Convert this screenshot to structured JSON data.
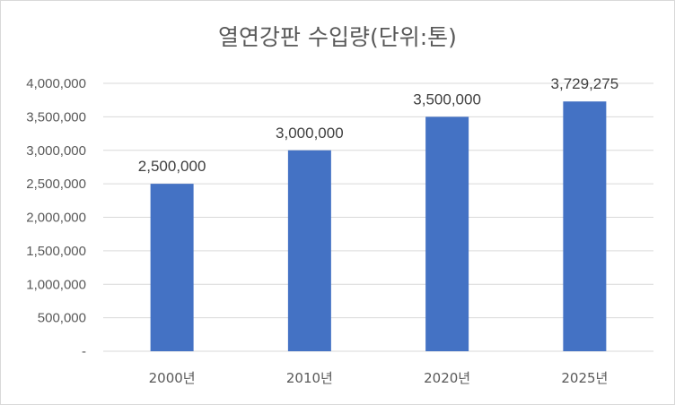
{
  "chart_data": {
    "type": "bar",
    "title": "열연강판 수입량(단위:톤)",
    "xlabel": "",
    "ylabel": "",
    "categories": [
      "2000년",
      "2010년",
      "2020년",
      "2025년"
    ],
    "values": [
      2500000,
      3000000,
      3500000,
      3729275
    ],
    "data_labels": [
      "2,500,000",
      "3,000,000",
      "3,500,000",
      "3,729,275"
    ],
    "ylim": [
      0,
      4000000
    ],
    "y_ticks": [
      0,
      500000,
      1000000,
      1500000,
      2000000,
      2500000,
      3000000,
      3500000,
      4000000
    ],
    "y_tick_labels": [
      "-",
      "500,000",
      "1,000,000",
      "1,500,000",
      "2,000,000",
      "2,500,000",
      "3,000,000",
      "3,500,000",
      "4,000,000"
    ],
    "grid": true,
    "legend": "none",
    "colors": {
      "bar": "#4472c4",
      "grid": "#d9d9d9",
      "text": "#595959"
    }
  }
}
